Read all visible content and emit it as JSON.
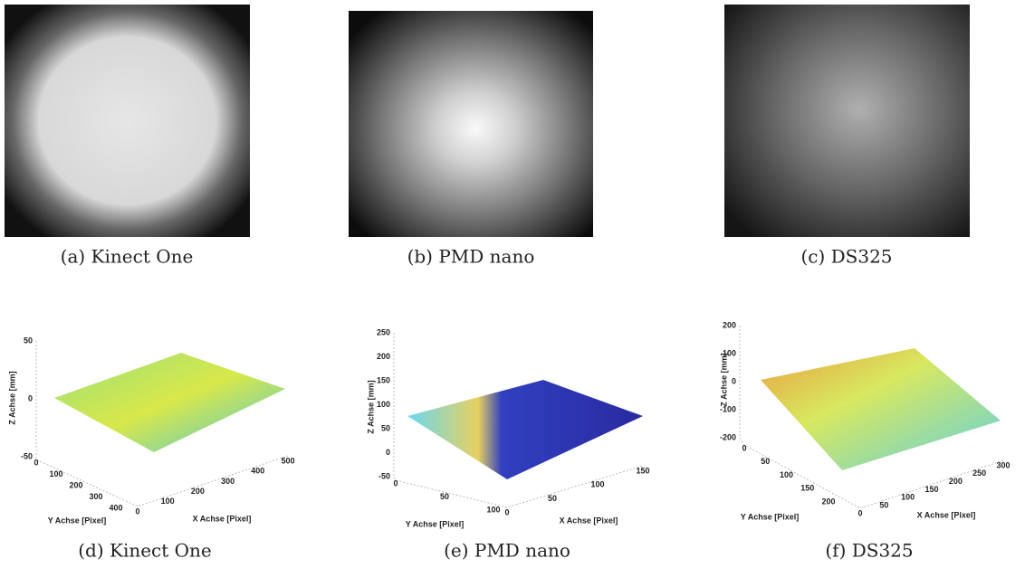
{
  "images": [
    {
      "caption": "(a) Kinect One"
    },
    {
      "caption": "(b) PMD nano"
    },
    {
      "caption": "(c) DS325"
    }
  ],
  "plots": [
    {
      "caption": "(d) Kinect One",
      "z_label": "Z Achse [mm]",
      "y_label": "Y Achse [Pixel]",
      "x_label": "X Achse [Pixel]",
      "z_ticks": [
        50,
        0,
        -50
      ],
      "y_ticks": [
        0,
        100,
        200,
        300,
        400
      ],
      "x_ticks": [
        0,
        100,
        200,
        300,
        400,
        500
      ]
    },
    {
      "caption": "(e) PMD nano",
      "z_label": "Z Achse [mm]",
      "y_label": "Y Achse [Pixel]",
      "x_label": "X Achse [Pixel]",
      "z_ticks": [
        250,
        200,
        150,
        100,
        50,
        0,
        -50
      ],
      "y_ticks": [
        0,
        50,
        100
      ],
      "x_ticks": [
        0,
        50,
        100,
        150
      ]
    },
    {
      "caption": "(f) DS325",
      "z_label": "Z Achse [mm]",
      "y_label": "Y Achse [Pixel]",
      "x_label": "X Achse [Pixel]",
      "z_ticks": [
        200,
        100,
        0,
        -100,
        -200
      ],
      "y_ticks": [
        0,
        50,
        100,
        150,
        200
      ],
      "x_ticks": [
        0,
        50,
        100,
        150,
        200,
        250,
        300
      ]
    }
  ]
}
